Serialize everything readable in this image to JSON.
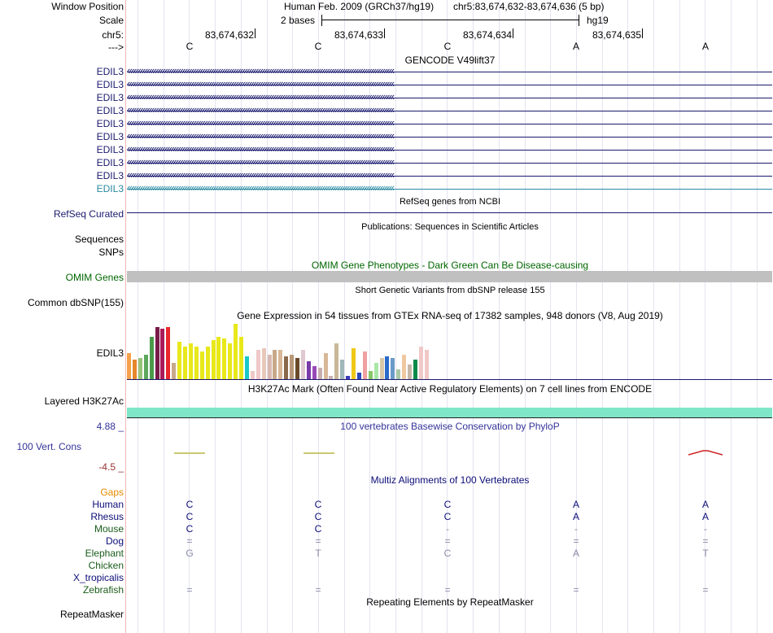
{
  "header": {
    "window_position_label": "Window Position",
    "scale_label": "Scale",
    "chrom_label": "chr5:",
    "strand_label": "--->",
    "assembly_title": "Human Feb. 2009 (GRCh37/hg19)",
    "position_text": "chr5:83,674,632-83,674,636 (5 bp)",
    "scale_text": "2 bases",
    "db_label": "hg19",
    "coordinates": [
      "83,674,632",
      "83,674,633",
      "83,674,634",
      "83,674,635"
    ],
    "bases": [
      "C",
      "C",
      "C",
      "A",
      "A"
    ]
  },
  "colors": {
    "gene_main": "#1a1a6e",
    "gene_light": "#2a8aa0",
    "omim_label": "#006600",
    "omim_bar": "#c0c0c0",
    "h3k27ac_bar": "#7fe6c8",
    "phylop_label": "#33339a",
    "pos_scale": "#33339a",
    "neg_scale": "#993333",
    "gaps": "#e68a00",
    "species_primate": "#0c0c78",
    "species_mammal": "#1a5c1a"
  },
  "tracks": {
    "gencode": {
      "title": "GENCODE V49lift37",
      "genes": [
        {
          "label": "EDIL3",
          "color": "#1a1a6e"
        },
        {
          "label": "EDIL3",
          "color": "#1a1a6e"
        },
        {
          "label": "EDIL3",
          "color": "#1a1a6e"
        },
        {
          "label": "EDIL3",
          "color": "#1a1a6e"
        },
        {
          "label": "EDIL3",
          "color": "#1a1a6e"
        },
        {
          "label": "EDIL3",
          "color": "#1a1a6e"
        },
        {
          "label": "EDIL3",
          "color": "#1a1a6e"
        },
        {
          "label": "EDIL3",
          "color": "#1a1a6e"
        },
        {
          "label": "EDIL3",
          "color": "#1a1a6e"
        },
        {
          "label": "EDIL3",
          "color": "#2a8aa0"
        }
      ]
    },
    "refseq": {
      "title": "RefSeq genes from NCBI",
      "label": "RefSeq Curated"
    },
    "publications": {
      "title": "Publications: Sequences in Scientific Articles",
      "label": "Sequences"
    },
    "snps_label": "SNPs",
    "omim": {
      "title": "OMIM Gene Phenotypes - Dark Green Can Be Disease-causing",
      "label": "OMIM Genes"
    },
    "dbsnp": {
      "title": "Short Genetic Variants from dbSNP release 155",
      "label": "Common dbSNP(155)"
    },
    "gtex": {
      "title": "Gene Expression in 54 tissues from GTEx RNA-seq of 17382 samples, 948 donors (V8, Aug 2019)",
      "label": "EDIL3",
      "bars": [
        {
          "value": 32,
          "color": "#f5a04a"
        },
        {
          "value": 24,
          "color": "#e8862c"
        },
        {
          "value": 26,
          "color": "#9ac47a"
        },
        {
          "value": 30,
          "color": "#5ca85c"
        },
        {
          "value": 52,
          "color": "#4a9a4a"
        },
        {
          "value": 64,
          "color": "#7a1a4a"
        },
        {
          "value": 62,
          "color": "#aa1a5a"
        },
        {
          "value": 64,
          "color": "#e8262c"
        },
        {
          "value": 20,
          "color": "#c8a88a"
        },
        {
          "value": 46,
          "color": "#e8e81a"
        },
        {
          "value": 40,
          "color": "#e8e81a"
        },
        {
          "value": 44,
          "color": "#e8e81a"
        },
        {
          "value": 40,
          "color": "#e8e81a"
        },
        {
          "value": 34,
          "color": "#e8e81a"
        },
        {
          "value": 40,
          "color": "#e8e81a"
        },
        {
          "value": 48,
          "color": "#e8e81a"
        },
        {
          "value": 52,
          "color": "#e8e81a"
        },
        {
          "value": 50,
          "color": "#e8e81a"
        },
        {
          "value": 44,
          "color": "#e8e81a"
        },
        {
          "value": 68,
          "color": "#e8e81a"
        },
        {
          "value": 52,
          "color": "#e8e81a"
        },
        {
          "value": 28,
          "color": "#1ac8c8"
        },
        {
          "value": 10,
          "color": "#f0c8c8"
        },
        {
          "value": 36,
          "color": "#f0c8c8"
        },
        {
          "value": 38,
          "color": "#e8c8b8"
        },
        {
          "value": 30,
          "color": "#d8b8b0"
        },
        {
          "value": 36,
          "color": "#c8a88a"
        },
        {
          "value": 36,
          "color": "#d8b898"
        },
        {
          "value": 28,
          "color": "#8a6a4a"
        },
        {
          "value": 30,
          "color": "#b89878"
        },
        {
          "value": 26,
          "color": "#6a4a2a"
        },
        {
          "value": 36,
          "color": "#e0c8d0"
        },
        {
          "value": 22,
          "color": "#7a3aaa"
        },
        {
          "value": 16,
          "color": "#9a4ab8"
        },
        {
          "value": 14,
          "color": "#c8b0b0"
        },
        {
          "value": 32,
          "color": "#d8b898"
        },
        {
          "value": 4,
          "color": "#c8b0b0"
        },
        {
          "value": 44,
          "color": "#c8b898"
        },
        {
          "value": 24,
          "color": "#a0b8b8"
        },
        {
          "value": 4,
          "color": "#3a3ab8"
        },
        {
          "value": 38,
          "color": "#f0c818"
        },
        {
          "value": 8,
          "color": "#2a4ab8"
        },
        {
          "value": 34,
          "color": "#f0a0a0"
        },
        {
          "value": 10,
          "color": "#88c868"
        },
        {
          "value": 20,
          "color": "#a8e8a8"
        },
        {
          "value": 26,
          "color": "#d8c8a8"
        },
        {
          "value": 28,
          "color": "#2a6ac8"
        },
        {
          "value": 26,
          "color": "#6a9ac8"
        },
        {
          "value": 12,
          "color": "#a8c8a8"
        },
        {
          "value": 30,
          "color": "#f0c8a0"
        },
        {
          "value": 18,
          "color": "#c8b8a8"
        },
        {
          "value": 24,
          "color": "#0a8a4a"
        },
        {
          "value": 40,
          "color": "#f0c8c8"
        },
        {
          "value": 36,
          "color": "#f0c8c8"
        }
      ]
    },
    "h3k27ac": {
      "title": "H3K27Ac Mark (Often Found Near Active Regulatory Elements) on 7 cell lines from ENCODE",
      "label": "Layered H3K27Ac"
    },
    "phylop": {
      "title": "100 vertebrates Basewise Conservation by PhyloP",
      "label": "100 Vert. Cons",
      "max_label": "4.88 _",
      "min_label": "-4.5 _"
    },
    "multiz": {
      "title": "Multiz Alignments of 100 Vertebrates",
      "gaps_label": "Gaps",
      "species": [
        {
          "name": "Human",
          "color": "#0c0c78",
          "bases": [
            "C",
            "C",
            "C",
            "A",
            "A"
          ],
          "base_color": "#0c0c78"
        },
        {
          "name": "Rhesus",
          "color": "#0c0c78",
          "bases": [
            "C",
            "C",
            "C",
            "A",
            "A"
          ],
          "base_color": "#0c0c78"
        },
        {
          "name": "Mouse",
          "color": "#1a5c1a",
          "bases": [
            "C",
            "C",
            "-",
            "-",
            "-"
          ],
          "base_color": "#0c0c78"
        },
        {
          "name": "Dog",
          "color": "#0c0c78",
          "bases": [
            "=",
            "=",
            "=",
            "=",
            "="
          ],
          "base_color": "#8a8aa8"
        },
        {
          "name": "Elephant",
          "color": "#1a5c1a",
          "bases": [
            "G",
            "T",
            "C",
            "A",
            "T"
          ],
          "base_color": "#8a8aa8"
        },
        {
          "name": "Chicken",
          "color": "#1a5c1a",
          "bases": [
            "",
            "",
            "",
            "",
            ""
          ],
          "base_color": "#0c0c78"
        },
        {
          "name": "X_tropicalis",
          "color": "#0c0c78",
          "bases": [
            "",
            "",
            "",
            "",
            ""
          ],
          "base_color": "#0c0c78"
        },
        {
          "name": "Zebrafish",
          "color": "#1a5c1a",
          "bases": [
            "=",
            "=",
            "=",
            "=",
            "="
          ],
          "base_color": "#8a8aa8"
        }
      ]
    },
    "repeatmasker": {
      "title": "Repeating Elements by RepeatMasker",
      "label": "RepeatMasker"
    }
  }
}
